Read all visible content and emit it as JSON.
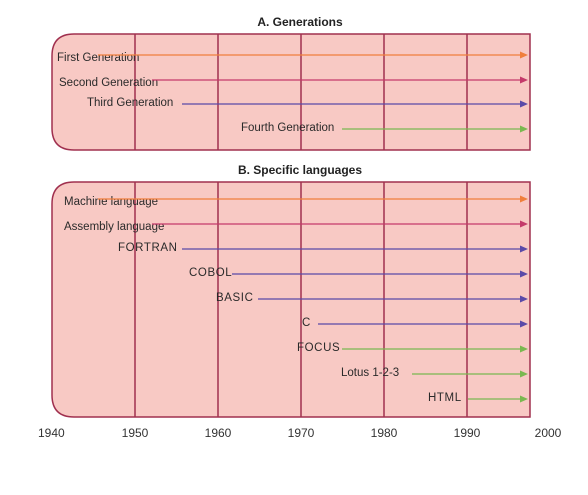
{
  "panel_a": {
    "title": "A. Generations",
    "rows": [
      {
        "label": "First Generation",
        "start_year": 1945,
        "color": "#f07f3c"
      },
      {
        "label": "Second Generation",
        "start_year": 1952,
        "color": "#c43a6a"
      },
      {
        "label": "Third Generation",
        "start_year": 1956,
        "color": "#5a4aa8"
      },
      {
        "label": "Fourth Generation",
        "start_year": 1975,
        "color": "#7ab850"
      }
    ]
  },
  "panel_b": {
    "title": "B. Specific languages",
    "rows": [
      {
        "label": "Machine language",
        "start_year": 1945,
        "color": "#f07f3c"
      },
      {
        "label": "Assembly language",
        "start_year": 1952,
        "color": "#c43a6a"
      },
      {
        "label": "FORTRAN",
        "start_year": 1956,
        "color": "#5a4aa8"
      },
      {
        "label": "COBOL",
        "start_year": 1961,
        "color": "#5a4aa8"
      },
      {
        "label": "BASIC",
        "start_year": 1964,
        "color": "#5a4aa8"
      },
      {
        "label": "C",
        "start_year": 1972,
        "color": "#5a4aa8"
      },
      {
        "label": "FOCUS",
        "start_year": 1975,
        "color": "#7ab850"
      },
      {
        "label": "Lotus 1-2-3",
        "start_year": 1983,
        "color": "#7ab850"
      },
      {
        "label": "HTML",
        "start_year": 1990,
        "color": "#7ab850"
      }
    ]
  },
  "axis": {
    "years": [
      "1940",
      "1950",
      "1960",
      "1970",
      "1980",
      "1990",
      "2000"
    ],
    "end_year": 1997
  },
  "colors": {
    "panel_fill": "#f8c9c4",
    "gridline": "#a0304f",
    "border": "#a0304f"
  }
}
